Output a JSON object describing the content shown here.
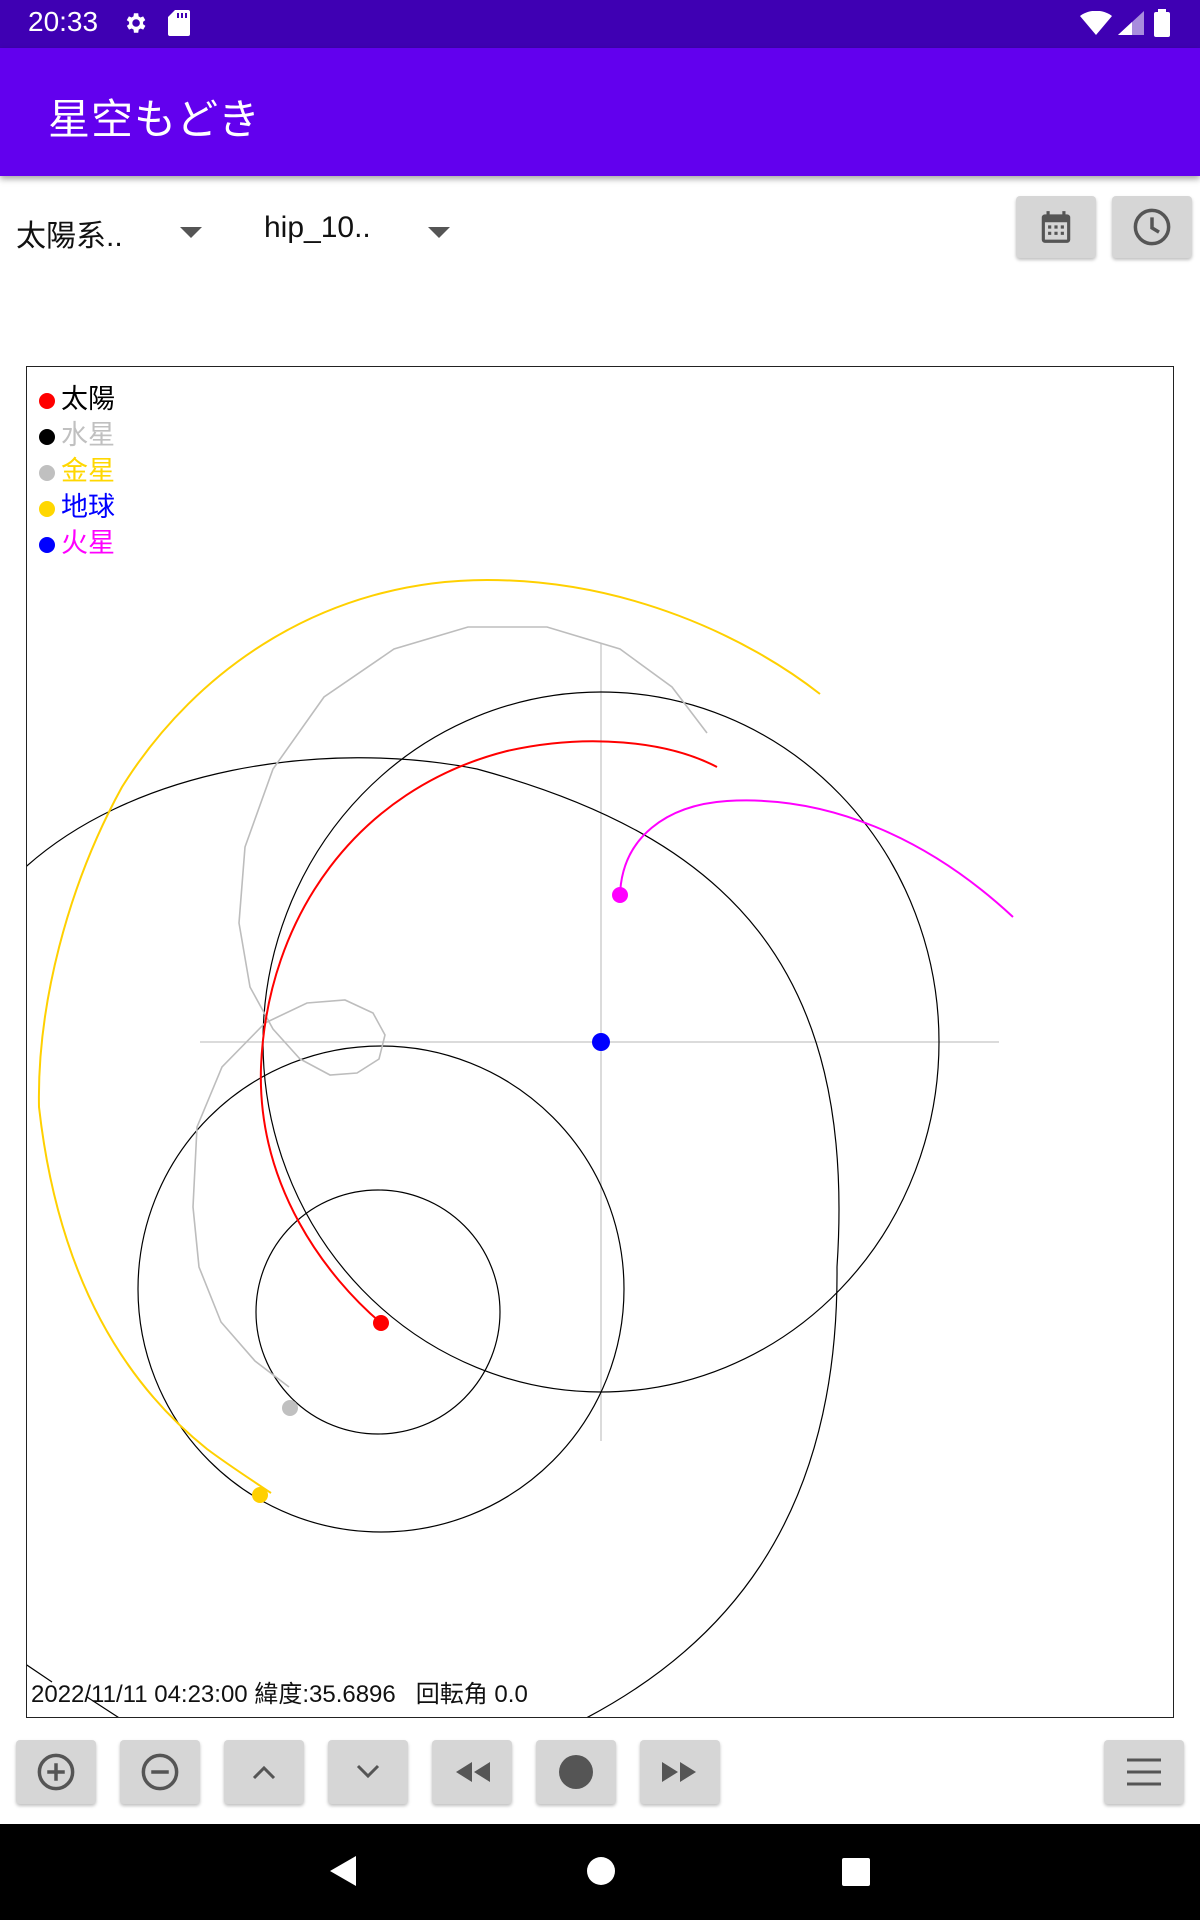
{
  "status_bar": {
    "time": "20:33",
    "left_icons": [
      "gear-icon",
      "sd-card-icon"
    ],
    "right_icons": [
      "wifi-icon",
      "signal-icon",
      "battery-icon"
    ]
  },
  "app_bar": {
    "title": "星空もどき",
    "color": "#6200ee"
  },
  "spinners": [
    {
      "value": "太陽系.."
    },
    {
      "value": "hip_10.."
    }
  ],
  "top_buttons": [
    {
      "icon": "calendar-icon"
    },
    {
      "icon": "clock-icon"
    }
  ],
  "legend": [
    {
      "label": "太陽",
      "dot_color": "#ff0000",
      "label_color": "#000000"
    },
    {
      "label": "水星",
      "dot_color": "#000000",
      "label_color": "#c0c0c0"
    },
    {
      "label": "金星",
      "dot_color": "#c0c0c0",
      "label_color": "#ffd700"
    },
    {
      "label": "地球",
      "dot_color": "#ffd700",
      "label_color": "#0000ff"
    },
    {
      "label": "火星",
      "dot_color": "#0000ff",
      "label_color": "#ff00ff"
    }
  ],
  "info": {
    "datetime": "2022/11/11 04:23:00",
    "latitude": "緯度:35.6896",
    "rotation": "回転角 0.0"
  },
  "bottom_buttons": [
    {
      "icon": "zoom-in-icon"
    },
    {
      "icon": "zoom-out-icon"
    },
    {
      "icon": "chevron-up-icon"
    },
    {
      "icon": "chevron-down-icon"
    },
    {
      "icon": "rewind-icon"
    },
    {
      "icon": "record-icon"
    },
    {
      "icon": "fast-forward-icon"
    },
    {
      "icon": "menu-icon"
    }
  ],
  "nav_bar": {
    "icons": [
      "back-icon",
      "home-icon",
      "recents-icon"
    ]
  }
}
